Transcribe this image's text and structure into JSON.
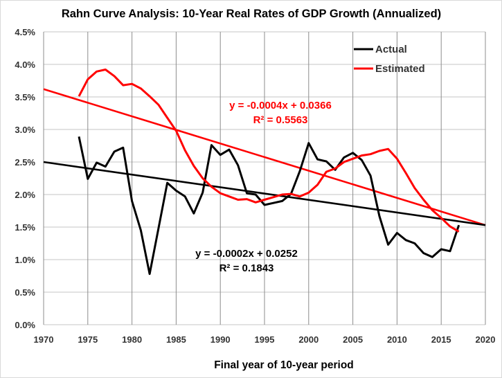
{
  "chart_data": {
    "type": "line",
    "title": "Rahn Curve Analysis: 10-Year Real Rates of GDP Growth (Annualized)",
    "xlabel": "Final year of 10-year period",
    "ylabel": "",
    "xlim": [
      1970,
      2020
    ],
    "ylim": [
      0.0,
      0.045
    ],
    "x_ticks": [
      1970,
      1975,
      1980,
      1985,
      1990,
      1995,
      2000,
      2005,
      2010,
      2015,
      2020
    ],
    "x_tick_labels": [
      "1970",
      "1975",
      "1980",
      "1985",
      "1990",
      "1995",
      "2000",
      "2005",
      "2010",
      "2015",
      "2020"
    ],
    "y_ticks": [
      0.0,
      0.005,
      0.01,
      0.015,
      0.02,
      0.025,
      0.03,
      0.035,
      0.04,
      0.045
    ],
    "y_tick_labels": [
      "0.0%",
      "0.5%",
      "1.0%",
      "1.5%",
      "2.0%",
      "2.5%",
      "3.0%",
      "3.5%",
      "4.0%",
      "4.5%"
    ],
    "grid": "both",
    "legend_position": "top-right",
    "x": [
      1974,
      1975,
      1976,
      1977,
      1978,
      1979,
      1980,
      1981,
      1982,
      1983,
      1984,
      1985,
      1986,
      1987,
      1988,
      1989,
      1990,
      1991,
      1992,
      1993,
      1994,
      1995,
      1996,
      1997,
      1998,
      1999,
      2000,
      2001,
      2002,
      2003,
      2004,
      2005,
      2006,
      2007,
      2008,
      2009,
      2010,
      2011,
      2012,
      2013,
      2014,
      2015,
      2016,
      2017
    ],
    "series": [
      {
        "name": "Actual",
        "color": "#000000",
        "values": [
          0.0289,
          0.0224,
          0.0249,
          0.0243,
          0.0266,
          0.0272,
          0.019,
          0.0145,
          0.0078,
          0.0148,
          0.0218,
          0.0206,
          0.0197,
          0.0171,
          0.0203,
          0.0276,
          0.0261,
          0.0269,
          0.0245,
          0.0202,
          0.02,
          0.0184,
          0.0187,
          0.019,
          0.0201,
          0.0236,
          0.0279,
          0.0254,
          0.0251,
          0.0238,
          0.0257,
          0.0264,
          0.0253,
          0.0229,
          0.0167,
          0.0123,
          0.0141,
          0.013,
          0.0125,
          0.011,
          0.0104,
          0.0116,
          0.0113,
          0.0153
        ]
      },
      {
        "name": "Estimated",
        "color": "#ff0000",
        "values": [
          0.0351,
          0.0377,
          0.0389,
          0.0392,
          0.0382,
          0.0368,
          0.037,
          0.0363,
          0.0351,
          0.0338,
          0.0318,
          0.0298,
          0.0268,
          0.0244,
          0.0225,
          0.0212,
          0.0202,
          0.0197,
          0.0192,
          0.0193,
          0.0188,
          0.0192,
          0.0196,
          0.02,
          0.0201,
          0.0197,
          0.0203,
          0.0215,
          0.0235,
          0.024,
          0.025,
          0.0255,
          0.026,
          0.0262,
          0.0267,
          0.027,
          0.0255,
          0.0233,
          0.021,
          0.0192,
          0.0176,
          0.0164,
          0.0151,
          0.0143
        ]
      }
    ],
    "trendlines": [
      {
        "series": "Estimated",
        "color": "#ff0000",
        "x": [
          1970,
          2020
        ],
        "values": [
          0.0362,
          0.0153
        ],
        "equation": "y = -0.0004x + 0.0366",
        "r_squared": "R² = 0.5563"
      },
      {
        "series": "Actual",
        "color": "#000000",
        "x": [
          1970,
          2020
        ],
        "values": [
          0.025,
          0.0153
        ],
        "equation": "y = -0.0002x + 0.0252",
        "r_squared": "R² = 0.1843"
      }
    ]
  }
}
